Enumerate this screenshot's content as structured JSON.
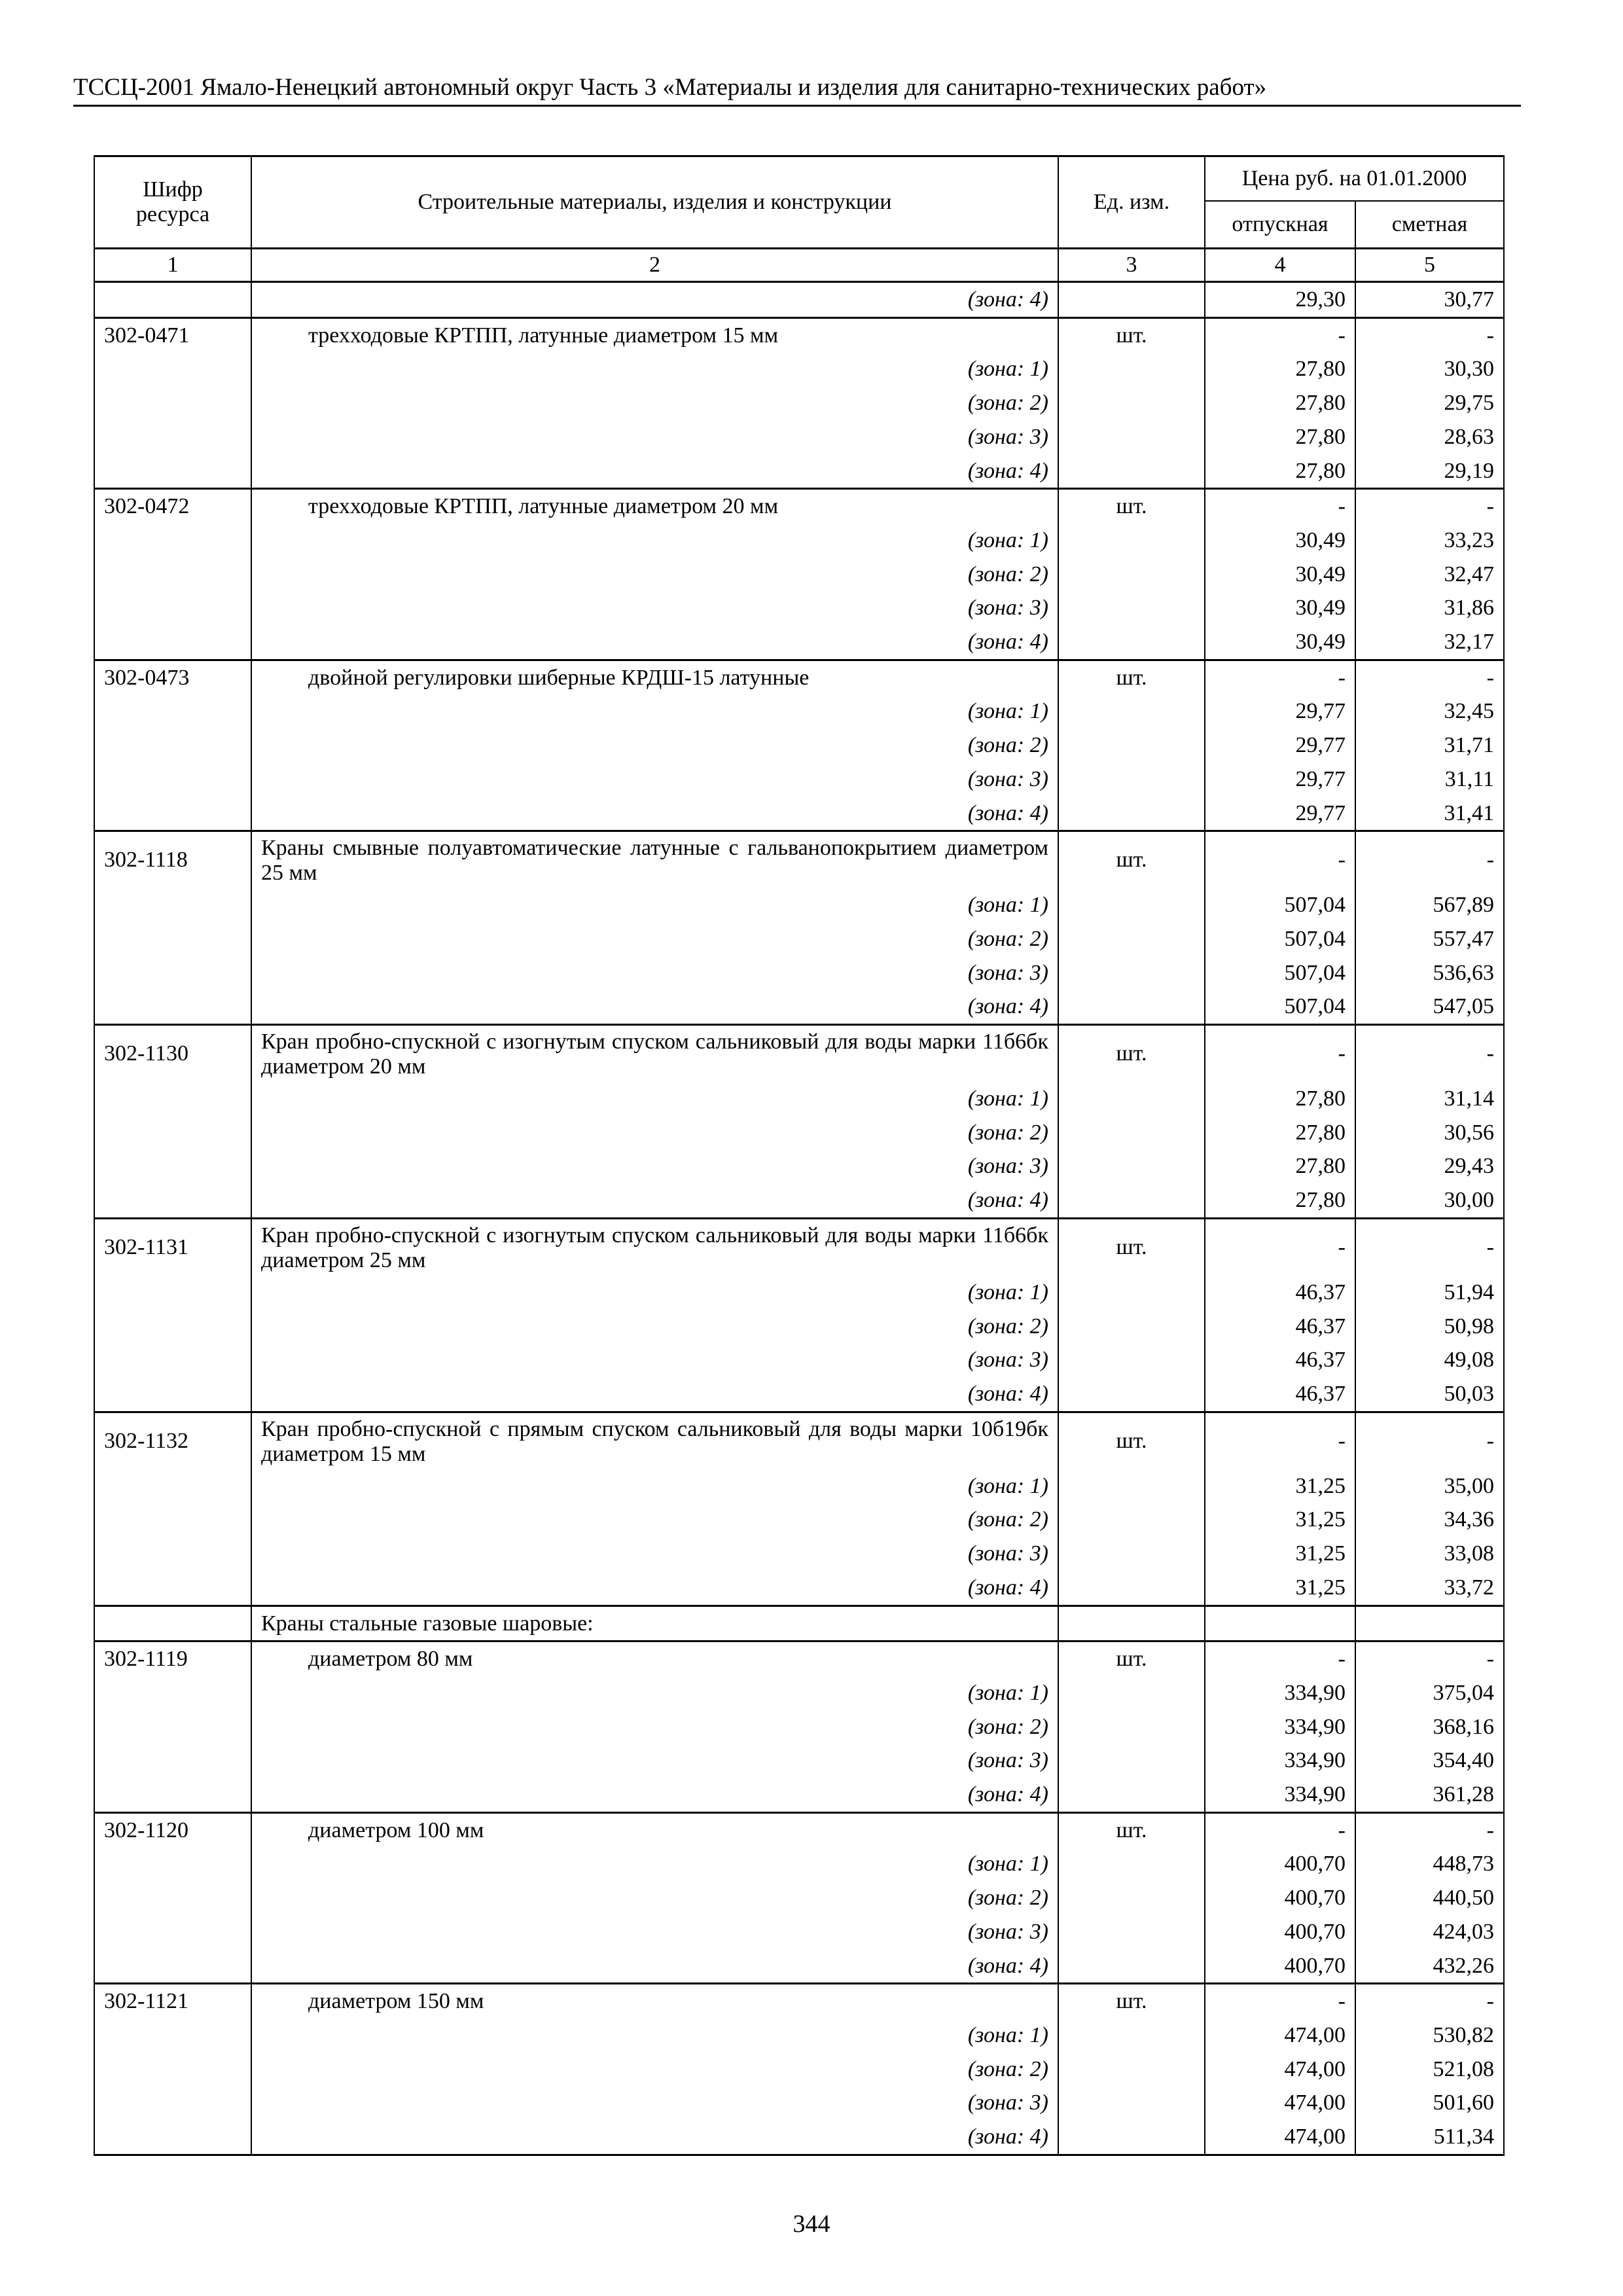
{
  "running_header": "ТССЦ-2001 Ямало-Ненецкий автономный округ Часть 3 «Материалы и изделия для санитарно-технических работ»",
  "table_header": {
    "code": "Шифр ресурса",
    "name": "Строительные материалы, изделия и конструкции",
    "unit": "Ед. изм.",
    "price": "Цена руб. на 01.01.2000",
    "price_base": "отпускная",
    "price_estimate": "сметная",
    "col_numbers": [
      "1",
      "2",
      "3",
      "4",
      "5"
    ]
  },
  "rows": [
    {
      "type": "continuation",
      "zones": [
        {
          "label": "(зона: 4)",
          "base": "29,30",
          "est": "30,77"
        }
      ]
    },
    {
      "type": "item",
      "code": "302-0471",
      "name": "трехходовые КРТПП, латунные диаметром 15 мм",
      "indent": true,
      "unit": "шт.",
      "base": "-",
      "est": "-",
      "zones": [
        {
          "label": "(зона: 1)",
          "base": "27,80",
          "est": "30,30"
        },
        {
          "label": "(зона: 2)",
          "base": "27,80",
          "est": "29,75"
        },
        {
          "label": "(зона: 3)",
          "base": "27,80",
          "est": "28,63"
        },
        {
          "label": "(зона: 4)",
          "base": "27,80",
          "est": "29,19"
        }
      ]
    },
    {
      "type": "item",
      "code": "302-0472",
      "name": "трехходовые КРТПП, латунные диаметром 20 мм",
      "indent": true,
      "unit": "шт.",
      "base": "-",
      "est": "-",
      "zones": [
        {
          "label": "(зона: 1)",
          "base": "30,49",
          "est": "33,23"
        },
        {
          "label": "(зона: 2)",
          "base": "30,49",
          "est": "32,47"
        },
        {
          "label": "(зона: 3)",
          "base": "30,49",
          "est": "31,86"
        },
        {
          "label": "(зона: 4)",
          "base": "30,49",
          "est": "32,17"
        }
      ]
    },
    {
      "type": "item",
      "code": "302-0473",
      "name": "двойной регулировки шиберные КРДШ-15 латунные",
      "indent": true,
      "unit": "шт.",
      "base": "-",
      "est": "-",
      "zones": [
        {
          "label": "(зона: 1)",
          "base": "29,77",
          "est": "32,45"
        },
        {
          "label": "(зона: 2)",
          "base": "29,77",
          "est": "31,71"
        },
        {
          "label": "(зона: 3)",
          "base": "29,77",
          "est": "31,11"
        },
        {
          "label": "(зона: 4)",
          "base": "29,77",
          "est": "31,41"
        }
      ]
    },
    {
      "type": "item",
      "code": "302-1118",
      "name": "Краны смывные полуавтоматические латунные с гальванопокрытием диаметром 25 мм",
      "multiline": true,
      "unit": "шт.",
      "base": "-",
      "est": "-",
      "zones": [
        {
          "label": "(зона: 1)",
          "base": "507,04",
          "est": "567,89"
        },
        {
          "label": "(зона: 2)",
          "base": "507,04",
          "est": "557,47"
        },
        {
          "label": "(зона: 3)",
          "base": "507,04",
          "est": "536,63"
        },
        {
          "label": "(зона: 4)",
          "base": "507,04",
          "est": "547,05"
        }
      ]
    },
    {
      "type": "item",
      "code": "302-1130",
      "name": "Кран пробно-спускной с изогнутым спуском сальниковый для воды марки 11б6бк диаметром 20 мм",
      "multiline": true,
      "unit": "шт.",
      "base": "-",
      "est": "-",
      "zones": [
        {
          "label": "(зона: 1)",
          "base": "27,80",
          "est": "31,14"
        },
        {
          "label": "(зона: 2)",
          "base": "27,80",
          "est": "30,56"
        },
        {
          "label": "(зона: 3)",
          "base": "27,80",
          "est": "29,43"
        },
        {
          "label": "(зона: 4)",
          "base": "27,80",
          "est": "30,00"
        }
      ]
    },
    {
      "type": "item",
      "code": "302-1131",
      "name": "Кран пробно-спускной с изогнутым спуском сальниковый для воды марки 11б6бк диаметром 25 мм",
      "multiline": true,
      "unit": "шт.",
      "base": "-",
      "est": "-",
      "zones": [
        {
          "label": "(зона: 1)",
          "base": "46,37",
          "est": "51,94"
        },
        {
          "label": "(зона: 2)",
          "base": "46,37",
          "est": "50,98"
        },
        {
          "label": "(зона: 3)",
          "base": "46,37",
          "est": "49,08"
        },
        {
          "label": "(зона: 4)",
          "base": "46,37",
          "est": "50,03"
        }
      ]
    },
    {
      "type": "item",
      "code": "302-1132",
      "name": "Кран пробно-спускной с прямым спуском сальниковый для воды марки 10б19бк диаметром 15 мм",
      "multiline": true,
      "unit": "шт.",
      "base": "-",
      "est": "-",
      "zones": [
        {
          "label": "(зона: 1)",
          "base": "31,25",
          "est": "35,00"
        },
        {
          "label": "(зона: 2)",
          "base": "31,25",
          "est": "34,36"
        },
        {
          "label": "(зона: 3)",
          "base": "31,25",
          "est": "33,08"
        },
        {
          "label": "(зона: 4)",
          "base": "31,25",
          "est": "33,72"
        }
      ]
    },
    {
      "type": "group",
      "name": "Краны стальные газовые шаровые:"
    },
    {
      "type": "item",
      "code": "302-1119",
      "name": "диаметром 80 мм",
      "indent": true,
      "unit": "шт.",
      "base": "-",
      "est": "-",
      "zones": [
        {
          "label": "(зона: 1)",
          "base": "334,90",
          "est": "375,04"
        },
        {
          "label": "(зона: 2)",
          "base": "334,90",
          "est": "368,16"
        },
        {
          "label": "(зона: 3)",
          "base": "334,90",
          "est": "354,40"
        },
        {
          "label": "(зона: 4)",
          "base": "334,90",
          "est": "361,28"
        }
      ]
    },
    {
      "type": "item",
      "code": "302-1120",
      "name": "диаметром 100 мм",
      "indent": true,
      "unit": "шт.",
      "base": "-",
      "est": "-",
      "zones": [
        {
          "label": "(зона: 1)",
          "base": "400,70",
          "est": "448,73"
        },
        {
          "label": "(зона: 2)",
          "base": "400,70",
          "est": "440,50"
        },
        {
          "label": "(зона: 3)",
          "base": "400,70",
          "est": "424,03"
        },
        {
          "label": "(зона: 4)",
          "base": "400,70",
          "est": "432,26"
        }
      ]
    },
    {
      "type": "item",
      "code": "302-1121",
      "name": "диаметром 150 мм",
      "indent": true,
      "unit": "шт.",
      "base": "-",
      "est": "-",
      "zones": [
        {
          "label": "(зона: 1)",
          "base": "474,00",
          "est": "530,82"
        },
        {
          "label": "(зона: 2)",
          "base": "474,00",
          "est": "521,08"
        },
        {
          "label": "(зона: 3)",
          "base": "474,00",
          "est": "501,60"
        },
        {
          "label": "(зона: 4)",
          "base": "474,00",
          "est": "511,34"
        }
      ]
    }
  ],
  "page_number": "344"
}
